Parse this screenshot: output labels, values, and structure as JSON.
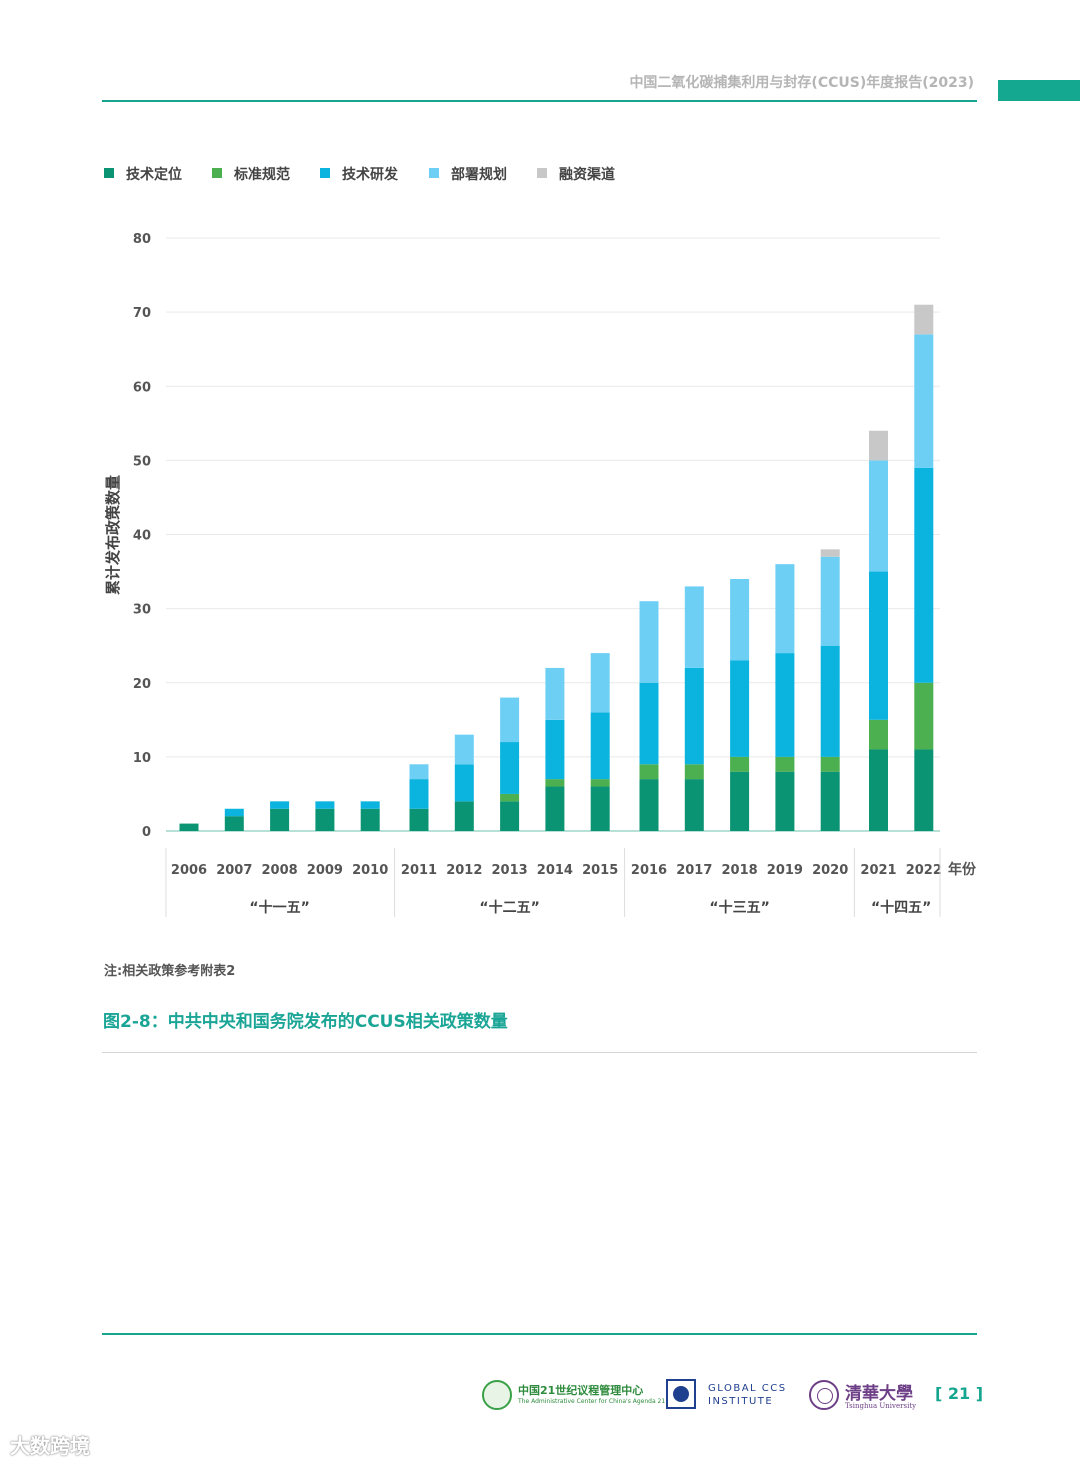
{
  "header": {
    "title": "中国二氧化碳捕集利用与封存(CCUS)年度报告(2023)"
  },
  "note": "注:相关政策参考附表2",
  "caption": "图2-8：中共中央和国务院发布的CCUS相关政策数量",
  "footer": {
    "logo_acca21_name": "中国21世纪议程管理中心",
    "logo_acca21_sub": "The Administrative Center for China's Agenda 21",
    "logo_gccsi_line1": "GLOBAL CCS",
    "logo_gccsi_line2": "INSTITUTE",
    "logo_tsinghua_cn": "清華大學",
    "logo_tsinghua_en": "Tsinghua University",
    "page_number": "[ 21 ]"
  },
  "watermark": "大数跨境",
  "chart_data": {
    "type": "bar",
    "stacked": true,
    "title": "",
    "xlabel": "年份",
    "ylabel": "累计发布政策数量",
    "ylim": [
      0,
      80
    ],
    "yticks": [
      0,
      10,
      20,
      30,
      40,
      50,
      60,
      70,
      80
    ],
    "legend_position": "top-left",
    "grid": true,
    "categories": [
      "2006",
      "2007",
      "2008",
      "2009",
      "2010",
      "2011",
      "2012",
      "2013",
      "2014",
      "2015",
      "2016",
      "2017",
      "2018",
      "2019",
      "2020",
      "2021",
      "2022"
    ],
    "groups": [
      {
        "label": "“十一五”",
        "count": 5
      },
      {
        "label": "“十二五”",
        "count": 5
      },
      {
        "label": "“十三五”",
        "count": 5
      },
      {
        "label": "“十四五”",
        "count": 2
      }
    ],
    "series": [
      {
        "name": "技术定位",
        "color": "#0b9473",
        "values": [
          1,
          2,
          3,
          3,
          3,
          3,
          4,
          4,
          6,
          6,
          7,
          7,
          8,
          8,
          8,
          11,
          11
        ]
      },
      {
        "name": "标准规范",
        "color": "#4caf50",
        "values": [
          0,
          0,
          0,
          0,
          0,
          0,
          0,
          1,
          1,
          1,
          2,
          2,
          2,
          2,
          2,
          4,
          9
        ]
      },
      {
        "name": "技术研发",
        "color": "#0ab4de",
        "values": [
          0,
          1,
          1,
          1,
          1,
          4,
          5,
          7,
          8,
          9,
          11,
          13,
          13,
          14,
          15,
          20,
          29
        ]
      },
      {
        "name": "部署规划",
        "color": "#6ecff5",
        "values": [
          0,
          0,
          0,
          0,
          0,
          2,
          4,
          6,
          7,
          8,
          11,
          11,
          11,
          12,
          12,
          15,
          18
        ]
      },
      {
        "name": "融资渠道",
        "color": "#c8c8c8",
        "values": [
          0,
          0,
          0,
          0,
          0,
          0,
          0,
          0,
          0,
          0,
          0,
          0,
          0,
          0,
          1,
          4,
          4
        ]
      }
    ]
  }
}
